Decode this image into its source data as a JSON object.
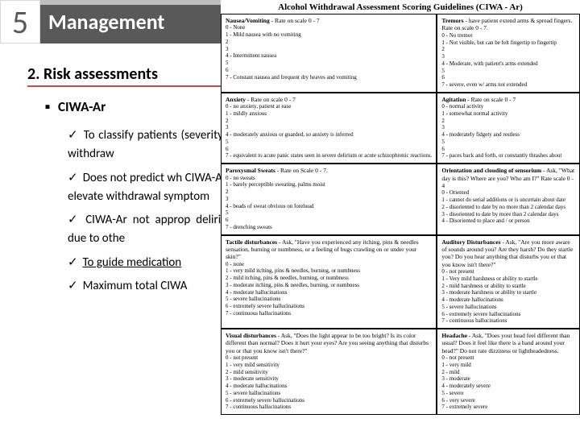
{
  "slide_number": "5",
  "title": "Management",
  "section_heading": "2. Risk assessments",
  "subheading": "CIWA-Ar",
  "bullets": [
    "To classify patients (severity of withdraw",
    "Does not predict wh CIWA-Ar is elevate withdrawal symptom",
    "CIWA-Ar not approp delirium due to othe",
    "To guide medication",
    "Maximum total CIWA"
  ],
  "underline_bullet_index": 3,
  "ciwa": {
    "title": "Alcohol Withdrawal Assessment Scoring Guidelines (CIWA - Ar)",
    "boxes": [
      {
        "head_bold": "Nausea/Vomiting",
        "head_rest": " - Rate on scale 0 - 7",
        "opts": [
          "0 - None",
          "1 - Mild nausea with no vomiting",
          "2",
          "3",
          "4 - Intermittent nausea",
          "5",
          "6",
          "7 - Constant nausea and frequent dry heaves and vomiting"
        ]
      },
      {
        "head_bold": "Tremors",
        "head_rest": " - have patient extend arms & spread fingers. Rate on scale 0 - 7.",
        "opts": [
          "0 - No tremor",
          "1 - Not visible, but can be felt fingertip to fingertip",
          "2",
          "3",
          "4 - Moderate, with patient's arms extended",
          "5",
          "6",
          "7 - severe, even w/ arms not extended"
        ]
      },
      {
        "head_bold": "Anxiety",
        "head_rest": " - Rate on scale 0 - 7",
        "opts": [
          "0 - no anxiety, patient at ease",
          "1 - mildly anxious",
          "2",
          "3",
          "4 - moderately anxious or guarded, so anxiety is inferred",
          "5",
          "6",
          "7 - equivalent to acute panic states seen in severe delirium or acute schizophrenic reactions."
        ]
      },
      {
        "head_bold": "Agitation",
        "head_rest": " - Rate on scale 0 - 7",
        "opts": [
          "0 - normal activity",
          "1 - somewhat normal activity",
          "2",
          "3",
          "4 - moderately fidgety and restless",
          "5",
          "6",
          "7 - paces back and forth, or constantly thrashes about"
        ]
      },
      {
        "head_bold": "Paroxysmal Sweats",
        "head_rest": " - Rate on Scale 0 - 7.",
        "opts": [
          "0 - no sweats",
          "1 - barely perceptible sweating, palms moist",
          "2",
          "3",
          "4 - beads of sweat obvious on forehead",
          "5",
          "6",
          "7 - drenching sweats"
        ]
      },
      {
        "head_bold": "Orientation and clouding of sensorium",
        "head_rest": " - Ask, \"What day is this? Where are you? Who am I?\" Rate scale 0 - 4",
        "opts": [
          "0 - Oriented",
          "1 - cannot do serial additions or is uncertain about date",
          "2 - disoriented to date by no more than 2 calendar days",
          "3 - disoriented to date by more than 2 calendar days",
          "4 - Disoriented to place and / or person"
        ]
      },
      {
        "head_bold": "Tactile disturbances",
        "head_rest": " - Ask, \"Have you experienced any itching, pins & needles sensation, burning or numbness, or a feeling of bugs crawling on or under your skin?\"",
        "opts": [
          "0 - none",
          "1 - very mild itching, pins & needles, burning, or numbness",
          "2 - mild itching, pins & needles, burning, or numbness",
          "3 - moderate itching, pins & needles, burning, or numbness",
          "4 - moderate hallucinations",
          "5 - severe hallucinations",
          "6 - extremely severe hallucinations",
          "7 - continuous hallucinations"
        ]
      },
      {
        "head_bold": "Auditory Disturbances",
        "head_rest": " - Ask, \"Are you more aware of sounds around you? Are they harsh? Do they startle you? Do you hear anything that disturbs you or that you know isn't there?\"",
        "opts": [
          "0 - not present",
          "1 - Very mild harshness or ability to startle",
          "2 - mild harshness or ability to startle",
          "3 - moderate harshness or ability to startle",
          "4 - moderate hallucinations",
          "5 - severe hallucinations",
          "6 - extremely severe hallucinations",
          "7 - continuous hallucinations"
        ]
      },
      {
        "head_bold": "Visual disturbances",
        "head_rest": " - Ask, \"Does the light appear to be too bright? Is its color different than normal? Does it hurt your eyes? Are you seeing anything that disturbs you or that you know isn't there?\"",
        "opts": [
          "0 - not present",
          "1 - very mild sensitivity",
          "2 - mild sensitivity",
          "3 - moderate sensitivity",
          "4 - moderate hallucinations",
          "5 - severe hallucinations",
          "6 - extremely severe hallucinations",
          "7 - continuous hallucinations"
        ]
      },
      {
        "head_bold": "Headache",
        "head_rest": " - Ask, \"Does your head feel different than usual? Does it feel like there is a band around your head?\" Do not rate dizziness or lightheadedness.",
        "opts": [
          "0 - not present",
          "1 - very mild",
          "2 - mild",
          "3 - moderate",
          "4 - moderately severe",
          "5 - severe",
          "6 - very severe",
          "7 - extremely severe"
        ]
      }
    ]
  }
}
